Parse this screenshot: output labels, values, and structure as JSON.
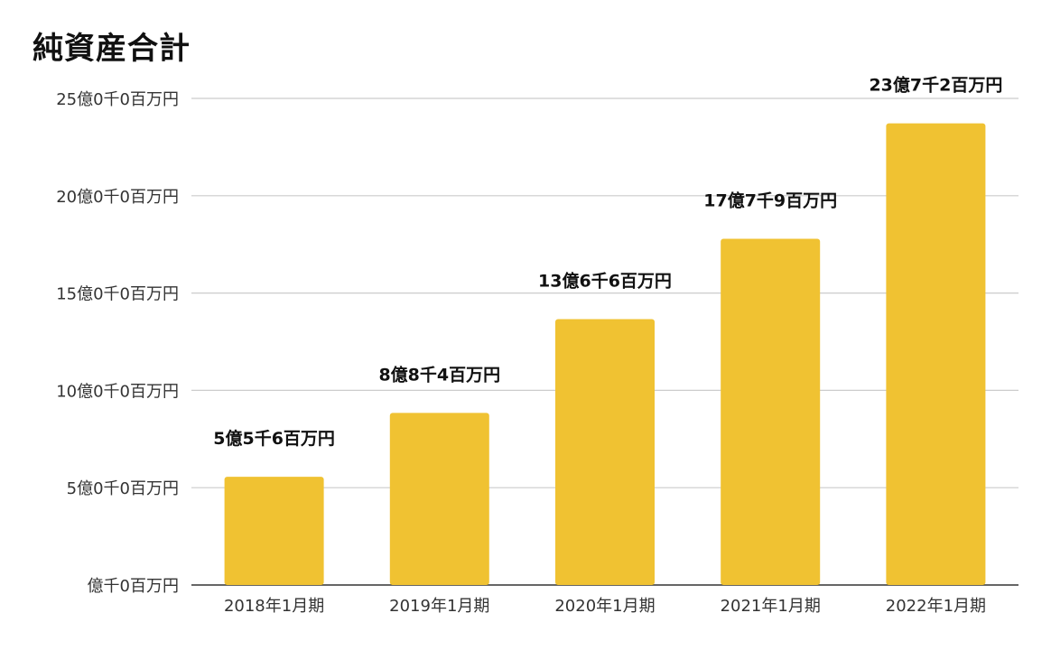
{
  "chart_data": {
    "type": "bar",
    "title": "純資産合計",
    "categories": [
      "2018年1月期",
      "2019年1月期",
      "2020年1月期",
      "2021年1月期",
      "2022年1月期"
    ],
    "values": [
      556,
      884,
      1366,
      1779,
      2372
    ],
    "value_unit": "百万円",
    "data_labels": [
      "5億5千6百万円",
      "8億8千4百万円",
      "13億6千6百万円",
      "17億7千9百万円",
      "23億7千2百万円"
    ],
    "yticks": [
      0,
      500,
      1000,
      1500,
      2000,
      2500
    ],
    "ytick_labels": [
      "億千0百万円",
      "5億0千0百万円",
      "10億0千0百万円",
      "15億0千0百万円",
      "20億0千0百万円",
      "25億0千0百万円"
    ],
    "ylim": [
      0,
      2500
    ],
    "grid": true,
    "bar_color": "#F0C232",
    "grid_color": "#cccccc",
    "axis_color": "#333333"
  }
}
